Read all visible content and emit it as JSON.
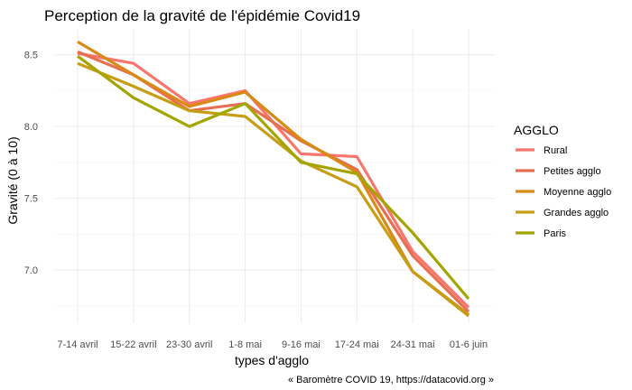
{
  "chart_data": {
    "type": "line",
    "title": "Perception de la gravité de l'épidémie Covid19",
    "xlabel": "types d'agglo",
    "ylabel": "Gravité (0 à 10)",
    "caption": "« Baromètre COVID 19, https://datacovid.org »",
    "categories": [
      "7-14 avril",
      "15-22 avril",
      "23-30 avril",
      "1-8 mai",
      "9-16 mai",
      "17-24 mai",
      "24-31 mai",
      "01-6 juin"
    ],
    "ylim": [
      6.63,
      8.68
    ],
    "yticks": [
      7.0,
      7.5,
      8.0,
      8.5
    ],
    "ytick_labels": [
      "7.0",
      "7.5",
      "8.0",
      "8.5"
    ],
    "grid": true,
    "legend": {
      "title": "AGGLO",
      "position": "right"
    },
    "series": [
      {
        "name": "Rural",
        "color": "#f8766d",
        "values": [
          8.51,
          8.44,
          8.16,
          8.25,
          7.81,
          7.79,
          7.13,
          6.74
        ]
      },
      {
        "name": "Petites agglo",
        "color": "#e76f51",
        "values": [
          8.52,
          8.36,
          8.11,
          8.16,
          7.9,
          7.7,
          7.1,
          6.71
        ]
      },
      {
        "name": "Moyenne agglo",
        "color": "#d98a14",
        "values": [
          8.59,
          8.36,
          8.14,
          8.24,
          7.91,
          7.68,
          6.99,
          6.69
        ]
      },
      {
        "name": "Grandes agglo",
        "color": "#c79d16",
        "values": [
          8.44,
          8.28,
          8.11,
          8.07,
          7.76,
          7.58,
          6.99,
          6.68
        ]
      },
      {
        "name": "Paris",
        "color": "#a3a500",
        "values": [
          8.49,
          8.2,
          8.0,
          8.16,
          7.75,
          7.67,
          7.26,
          6.8
        ]
      }
    ]
  }
}
